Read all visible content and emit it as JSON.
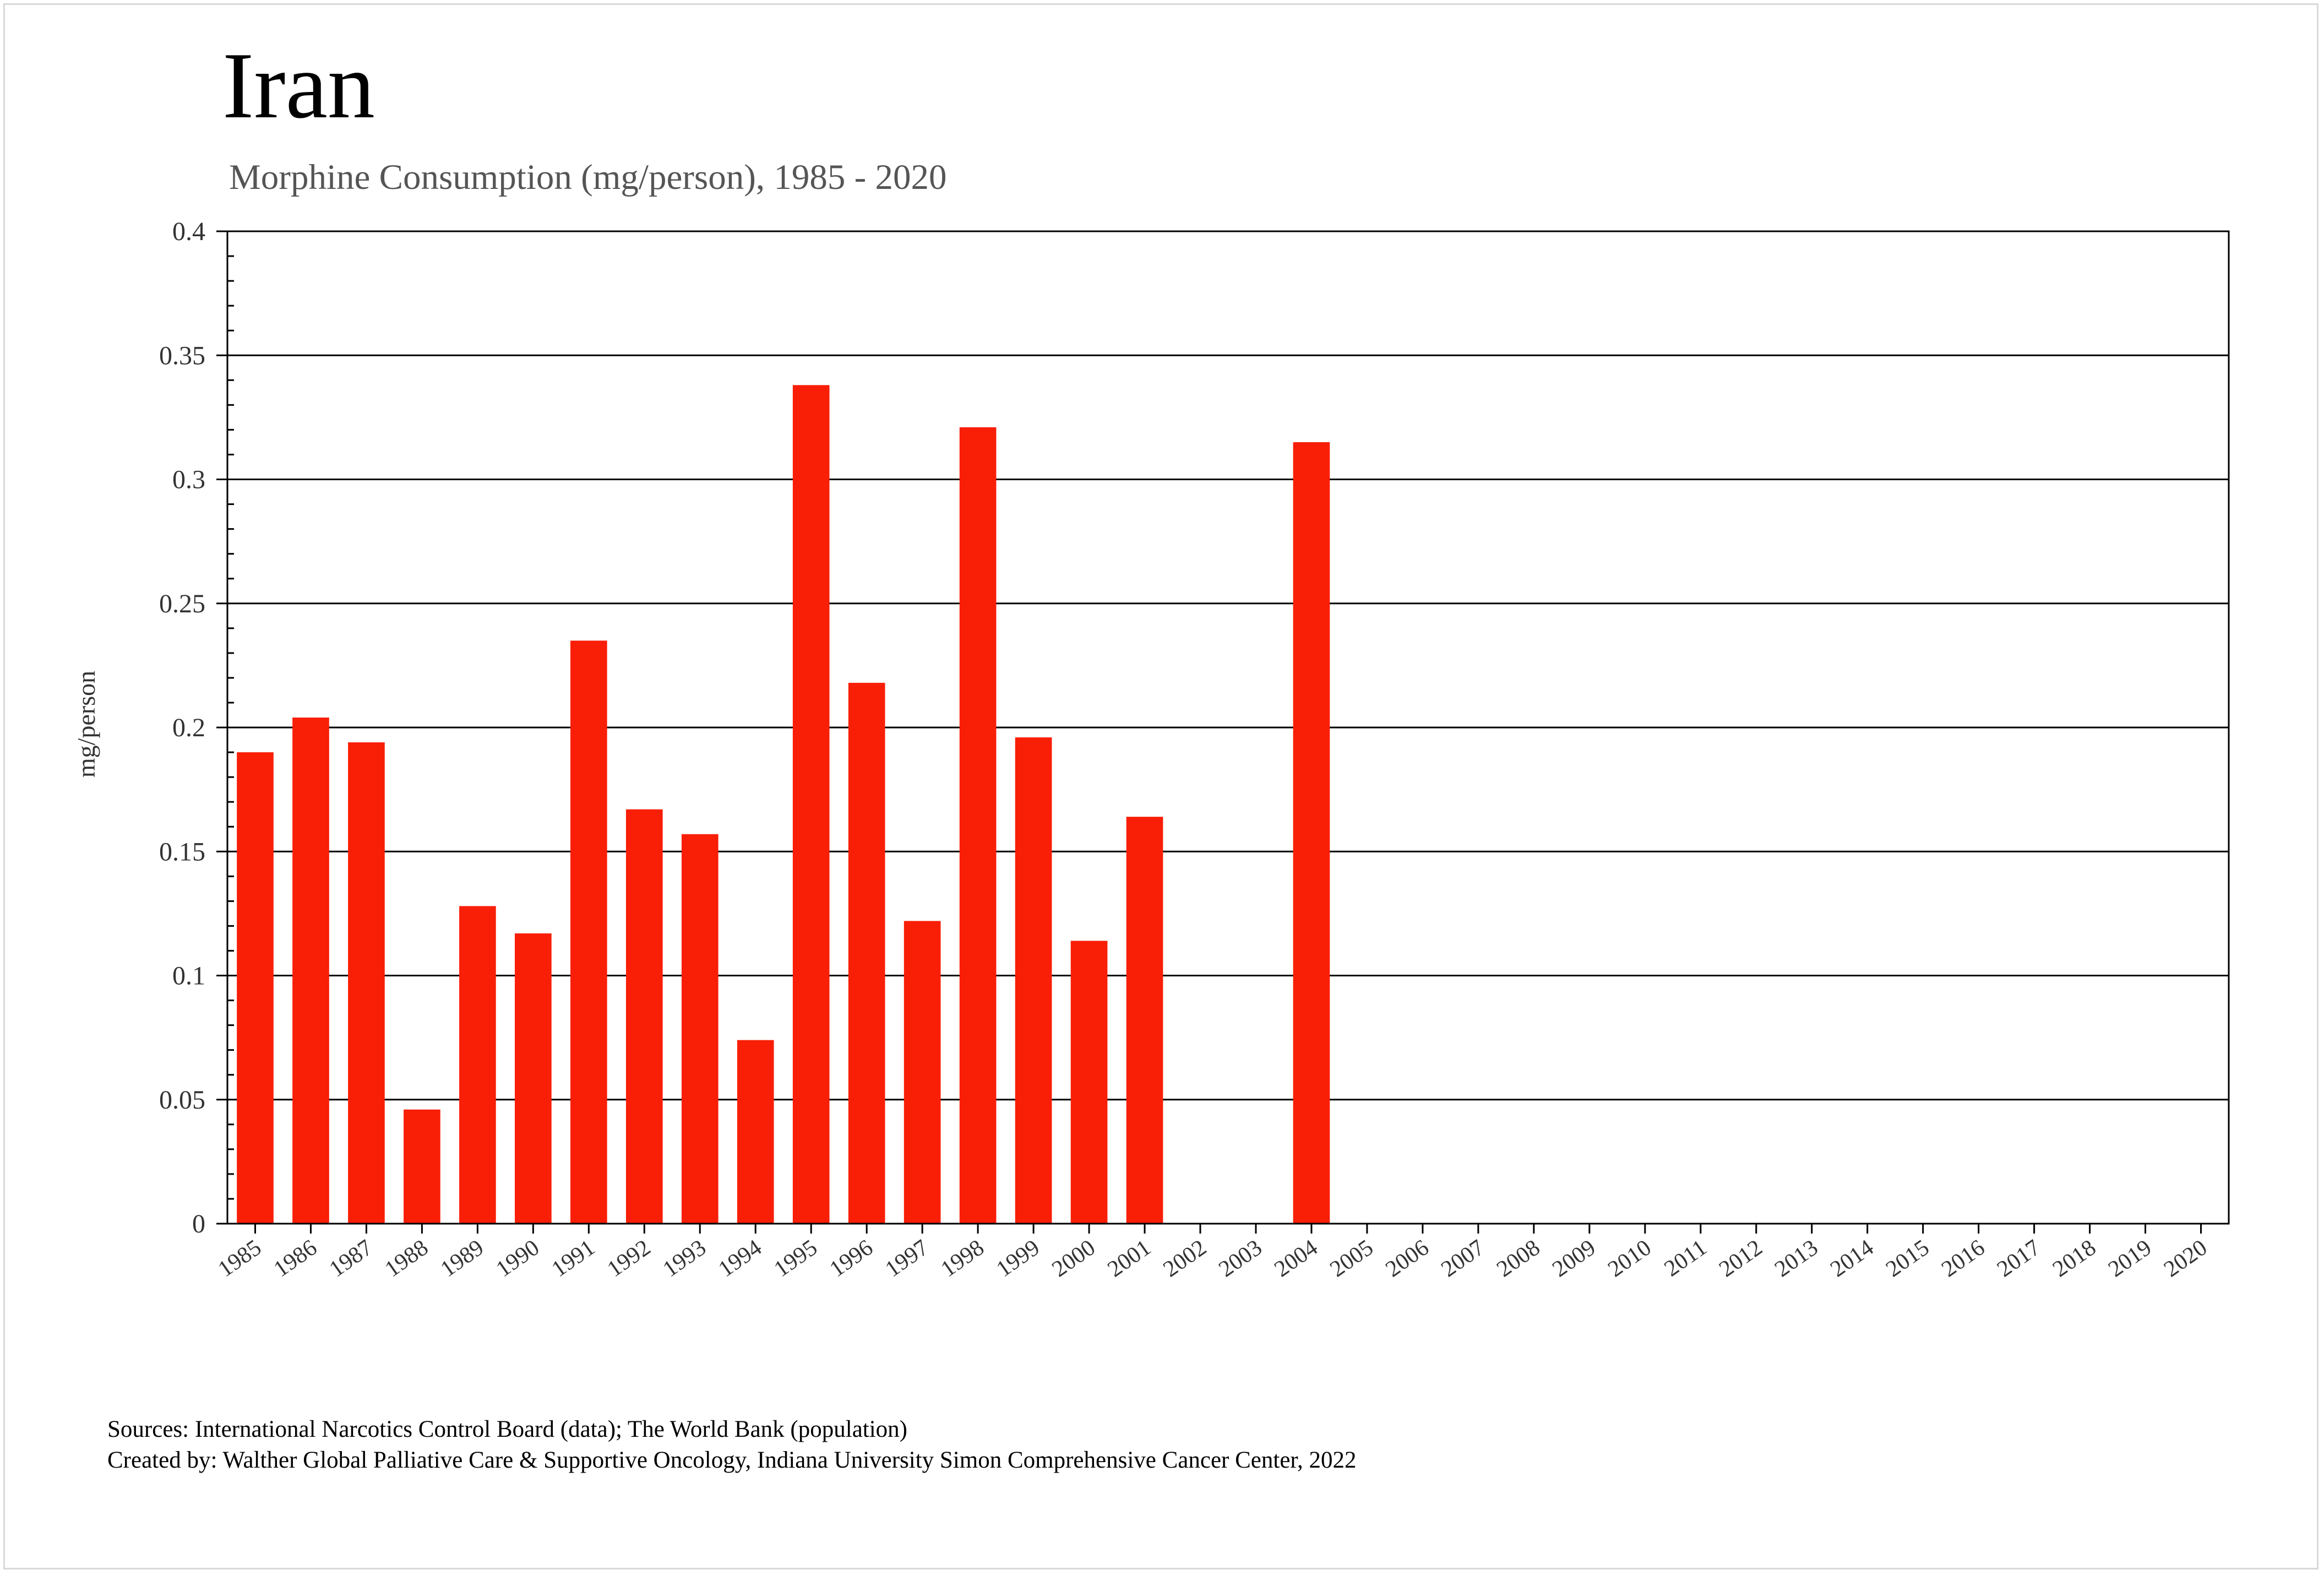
{
  "chart_data": {
    "type": "bar",
    "title": "Iran",
    "subtitle": "Morphine Consumption (mg/person), 1985 - 2020",
    "ylabel": "mg/person",
    "xlabel": "",
    "ylim": [
      0,
      0.4
    ],
    "yticks": [
      "0",
      "0.05",
      "0.1",
      "0.15",
      "0.2",
      "0.25",
      "0.3",
      "0.35",
      "0.4"
    ],
    "ytick_values": [
      0,
      0.05,
      0.1,
      0.15,
      0.2,
      0.25,
      0.3,
      0.35,
      0.4
    ],
    "grid": true,
    "legend": "none",
    "bar_color": "#f91e06",
    "categories": [
      "1985",
      "1986",
      "1987",
      "1988",
      "1989",
      "1990",
      "1991",
      "1992",
      "1993",
      "1994",
      "1995",
      "1996",
      "1997",
      "1998",
      "1999",
      "2000",
      "2001",
      "2002",
      "2003",
      "2004",
      "2005",
      "2006",
      "2007",
      "2008",
      "2009",
      "2010",
      "2011",
      "2012",
      "2013",
      "2014",
      "2015",
      "2016",
      "2017",
      "2018",
      "2019",
      "2020"
    ],
    "values": [
      0.19,
      0.204,
      0.194,
      0.046,
      0.128,
      0.117,
      0.235,
      0.167,
      0.157,
      0.074,
      0.338,
      0.218,
      0.122,
      0.321,
      0.196,
      0.114,
      0.164,
      null,
      null,
      0.315,
      null,
      null,
      null,
      null,
      null,
      null,
      null,
      null,
      null,
      null,
      null,
      null,
      null,
      null,
      null,
      null
    ]
  },
  "footer": {
    "sources": "Sources: International Narcotics Control Board (data); The World Bank (population)",
    "created_by": "Created by: Walther  Global Palliative Care & Supportive Oncology, Indiana University Simon Comprehensive Cancer Center, 2022"
  }
}
